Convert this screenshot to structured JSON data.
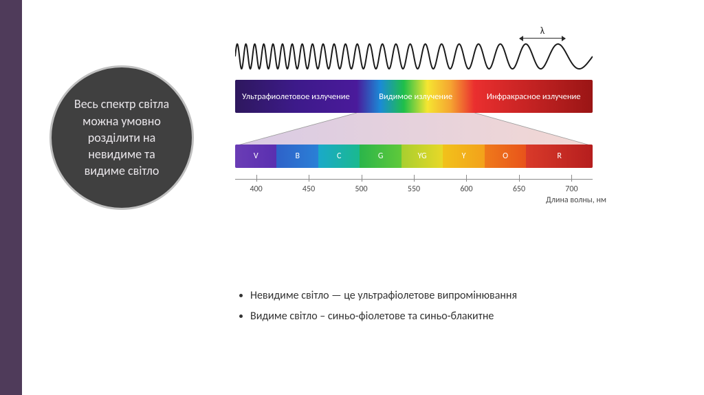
{
  "title": "Весь спектр світла можна умовно розділити на невидиме та видиме світло",
  "sidebar_color": "#4f3b5a",
  "circle": {
    "bg": "#404040",
    "border": "#bfbfbf",
    "text_color": "#e9e6ea",
    "fontsize": 18
  },
  "diagram": {
    "type": "infographic",
    "background_color": "#ffffff",
    "wave": {
      "stroke": "#1a1a1a",
      "stroke_width": 2,
      "start_freq_ratio": 7.0,
      "end_freq_ratio": 1.0,
      "amplitude": 18,
      "lambda_symbol": "λ"
    },
    "spectrum_segments": [
      {
        "label": "Ультрафиолетовое излучение",
        "gradient": [
          "#2e185e",
          "#3d1a8a",
          "#4a1a9b"
        ]
      },
      {
        "label": "Видимое излучение",
        "gradient": [
          "#4a1a9b",
          "#1b8ad6",
          "#1fbf4a",
          "#f5e631",
          "#f5a331",
          "#ea2f2f"
        ]
      },
      {
        "label": "Инфракрасное излучение",
        "gradient": [
          "#ea2f2f",
          "#9a1515"
        ]
      }
    ],
    "projection": {
      "top_left_pct": 34,
      "top_right_pct": 67,
      "fill_left": "#b9a0cf",
      "fill_right": "#e9b9b0"
    },
    "visible_bands": [
      {
        "letter": "V",
        "color": "#6a3db5",
        "color2": "#5a2fb0"
      },
      {
        "letter": "B",
        "color": "#2f62c9",
        "color2": "#2a80d6"
      },
      {
        "letter": "C",
        "color": "#1aa9c9",
        "color2": "#1ab98f"
      },
      {
        "letter": "G",
        "color": "#2bb54a",
        "color2": "#5fc93a"
      },
      {
        "letter": "YG",
        "color": "#a8cf2f",
        "color2": "#e8d828"
      },
      {
        "letter": "Y",
        "color": "#f1c21b",
        "color2": "#f3a11b"
      },
      {
        "letter": "O",
        "color": "#ef7a1b",
        "color2": "#e8531b"
      },
      {
        "letter": "R",
        "color": "#d93a2a",
        "color2": "#b51e1e"
      }
    ],
    "visible_band_weights": [
      1,
      1,
      1,
      1,
      1,
      1,
      1,
      1.6
    ],
    "axis": {
      "xlim": [
        380,
        720
      ],
      "ticks": [
        400,
        450,
        500,
        550,
        600,
        650,
        700
      ],
      "title": "Длина волны, нм",
      "tick_color": "#8a8a8a",
      "label_color": "#4a4a4a",
      "label_fontsize": 12
    }
  },
  "bullets": [
    "Невидиме світло — це ультрафіолетове випромінювання",
    "Видиме світло – синьо-фіолетове та синьо-блакитне"
  ]
}
